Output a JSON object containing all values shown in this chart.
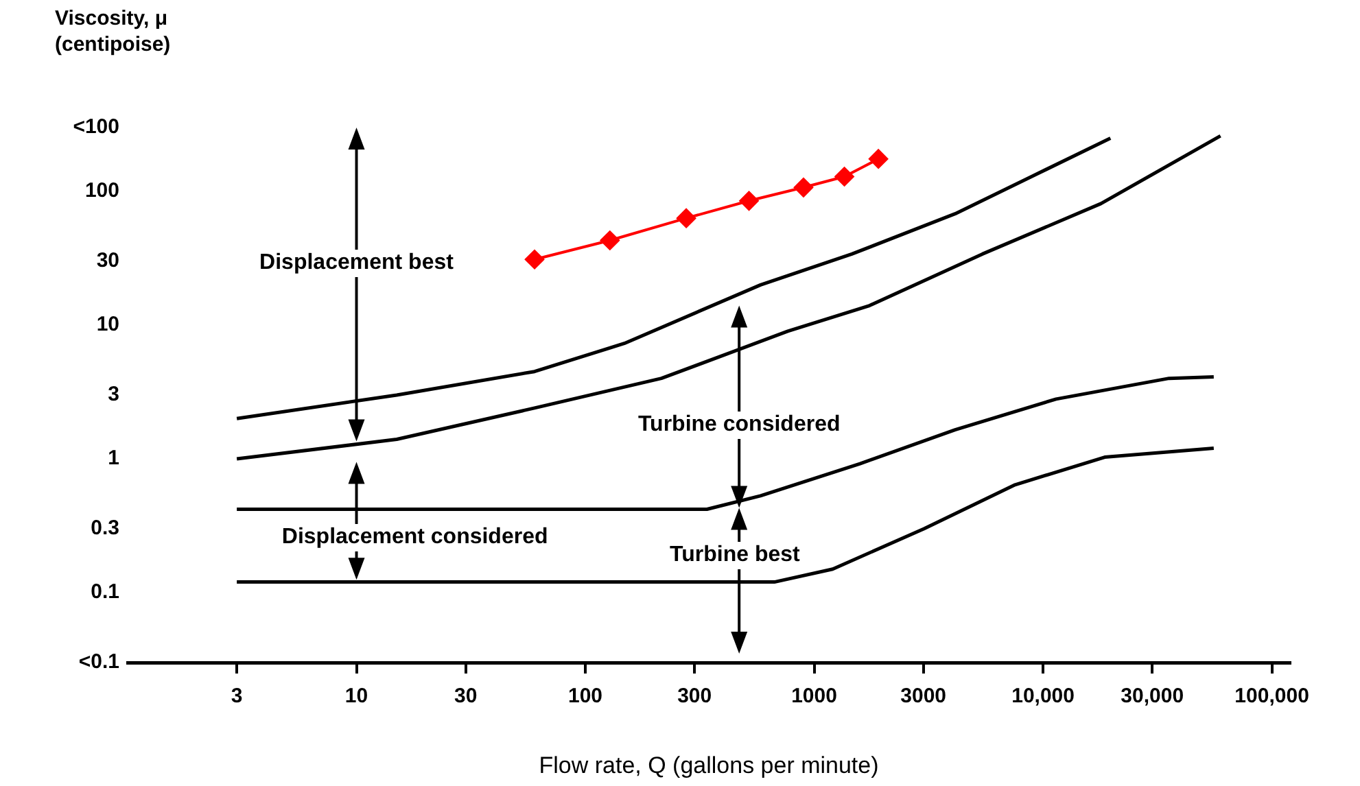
{
  "chart_data": {
    "type": "line",
    "xlabel": "Flow rate, Q (gallons per minute)",
    "ylabel": "Viscosity, μ (centipoise)",
    "log": "xy",
    "grid": false,
    "legend": false,
    "marker": "none",
    "line_style": "solid",
    "xlim": [
      1,
      120000
    ],
    "xticks": [
      3,
      10,
      30,
      100,
      300,
      1000,
      3000,
      {
        "value": 10000,
        "label": "10,000"
      },
      {
        "value": 30000,
        "label": "30,000"
      },
      {
        "value": 100000,
        "label": "100,000"
      }
    ],
    "ylim": [
      0.03,
      300
    ],
    "yticks": [
      {
        "value": 0.03,
        "label": "<0.1"
      },
      0.1,
      0.3,
      1,
      3,
      10,
      30,
      100,
      {
        "value": 300,
        "label": "<100"
      }
    ],
    "series": [
      {
        "color": "#000000",
        "x": [
          3,
          15,
          60,
          148,
          583,
          1460,
          4130,
          19700
        ],
        "values": [
          2,
          3,
          4.5,
          7.3,
          20,
          34,
          68,
          250
        ]
      },
      {
        "color": "#000000",
        "x": [
          3,
          15,
          60,
          215,
          767,
          1745,
          5430,
          17900,
          59600
        ],
        "values": [
          1,
          1.4,
          2.4,
          4,
          9,
          14,
          34,
          81,
          260
        ]
      },
      {
        "color": "#000000",
        "x": [
          3,
          340,
          583,
          1585,
          4130,
          11400,
          35500,
          55700
        ],
        "values": [
          0.42,
          0.42,
          0.53,
          0.92,
          1.65,
          2.8,
          4,
          4.1
        ]
      },
      {
        "color": "#000000",
        "x": [
          3,
          670,
          1205,
          3015,
          7550,
          18600,
          55700
        ],
        "values": [
          0.12,
          0.12,
          0.15,
          0.3,
          0.64,
          1.03,
          1.2
        ]
      },
      {
        "color": "#ff0000",
        "marker": "diamond",
        "x": [
          60,
          128,
          276,
          519,
          898,
          1355,
          1908
        ],
        "values": [
          31,
          43,
          63,
          85,
          107,
          129,
          175
        ]
      }
    ],
    "annotations": [
      "Displacement best",
      "Turbine considered",
      "Displacement considered",
      "Turbine best"
    ]
  }
}
